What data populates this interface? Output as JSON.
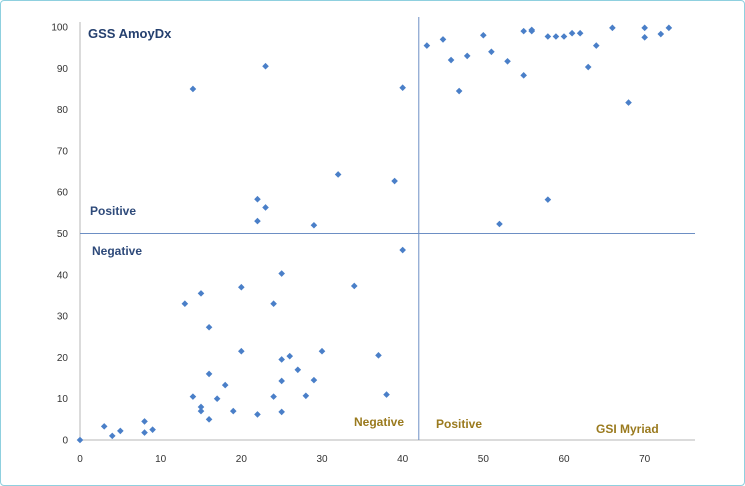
{
  "chart_data": {
    "type": "scatter",
    "xlabel": "GSI Myriad",
    "ylabel": "GSS AmoyDx",
    "xlim": [
      0,
      75
    ],
    "ylim": [
      0,
      100
    ],
    "x_ticks": [
      "0",
      "10",
      "20",
      "30",
      "40",
      "50",
      "60",
      "70"
    ],
    "y_ticks": [
      "0",
      "10",
      "20",
      "30",
      "40",
      "50",
      "60",
      "70",
      "80",
      "90",
      "100"
    ],
    "grid": false,
    "marker_color": "#4a7fc8",
    "line_color": "#6d8fc4",
    "threshold_x": 42,
    "threshold_y": 50,
    "quadrant_labels": {
      "y_positive": "Positive",
      "y_negative": "Negative",
      "x_negative": "Negative",
      "x_positive": "Positive"
    },
    "points": [
      {
        "x": 0,
        "y": 0
      },
      {
        "x": 3,
        "y": 3.3
      },
      {
        "x": 4,
        "y": 1
      },
      {
        "x": 5,
        "y": 2.2
      },
      {
        "x": 8,
        "y": 4.5
      },
      {
        "x": 8,
        "y": 1.8
      },
      {
        "x": 9,
        "y": 2.5
      },
      {
        "x": 13,
        "y": 33
      },
      {
        "x": 14,
        "y": 85
      },
      {
        "x": 14,
        "y": 10.5
      },
      {
        "x": 15,
        "y": 35.5
      },
      {
        "x": 15,
        "y": 8
      },
      {
        "x": 15,
        "y": 7
      },
      {
        "x": 16,
        "y": 27.3
      },
      {
        "x": 16,
        "y": 16
      },
      {
        "x": 16,
        "y": 5
      },
      {
        "x": 17,
        "y": 10
      },
      {
        "x": 18,
        "y": 13.3
      },
      {
        "x": 19,
        "y": 7
      },
      {
        "x": 20,
        "y": 37
      },
      {
        "x": 20,
        "y": 21.5
      },
      {
        "x": 22,
        "y": 58.3
      },
      {
        "x": 22,
        "y": 53
      },
      {
        "x": 22,
        "y": 6.2
      },
      {
        "x": 23,
        "y": 90.5
      },
      {
        "x": 23,
        "y": 56.3
      },
      {
        "x": 24,
        "y": 33
      },
      {
        "x": 24,
        "y": 10.5
      },
      {
        "x": 25,
        "y": 40.3
      },
      {
        "x": 25,
        "y": 19.5
      },
      {
        "x": 25,
        "y": 14.3
      },
      {
        "x": 25,
        "y": 6.8
      },
      {
        "x": 26,
        "y": 20.3
      },
      {
        "x": 27,
        "y": 17
      },
      {
        "x": 28,
        "y": 10.7
      },
      {
        "x": 29,
        "y": 52
      },
      {
        "x": 29,
        "y": 14.5
      },
      {
        "x": 30,
        "y": 21.5
      },
      {
        "x": 32,
        "y": 64.3
      },
      {
        "x": 34,
        "y": 37.3
      },
      {
        "x": 37,
        "y": 20.5
      },
      {
        "x": 38,
        "y": 11
      },
      {
        "x": 39,
        "y": 62.7
      },
      {
        "x": 40,
        "y": 85.3
      },
      {
        "x": 40,
        "y": 46
      },
      {
        "x": 43,
        "y": 95.5
      },
      {
        "x": 45,
        "y": 97
      },
      {
        "x": 46,
        "y": 92
      },
      {
        "x": 47,
        "y": 84.5
      },
      {
        "x": 48,
        "y": 93
      },
      {
        "x": 50,
        "y": 98
      },
      {
        "x": 51,
        "y": 94
      },
      {
        "x": 52,
        "y": 52.3
      },
      {
        "x": 53,
        "y": 91.7
      },
      {
        "x": 55,
        "y": 99
      },
      {
        "x": 55,
        "y": 88.3
      },
      {
        "x": 56,
        "y": 99.3
      },
      {
        "x": 56,
        "y": 99
      },
      {
        "x": 58,
        "y": 97.7
      },
      {
        "x": 58,
        "y": 58.2
      },
      {
        "x": 59,
        "y": 97.7
      },
      {
        "x": 60,
        "y": 97.7
      },
      {
        "x": 61,
        "y": 98.5
      },
      {
        "x": 62,
        "y": 98.5
      },
      {
        "x": 63,
        "y": 90.3
      },
      {
        "x": 64,
        "y": 95.5
      },
      {
        "x": 66,
        "y": 99.8
      },
      {
        "x": 68,
        "y": 81.7
      },
      {
        "x": 70,
        "y": 99.8
      },
      {
        "x": 70,
        "y": 97.5
      },
      {
        "x": 72,
        "y": 98.3
      },
      {
        "x": 73,
        "y": 99.8
      }
    ]
  }
}
